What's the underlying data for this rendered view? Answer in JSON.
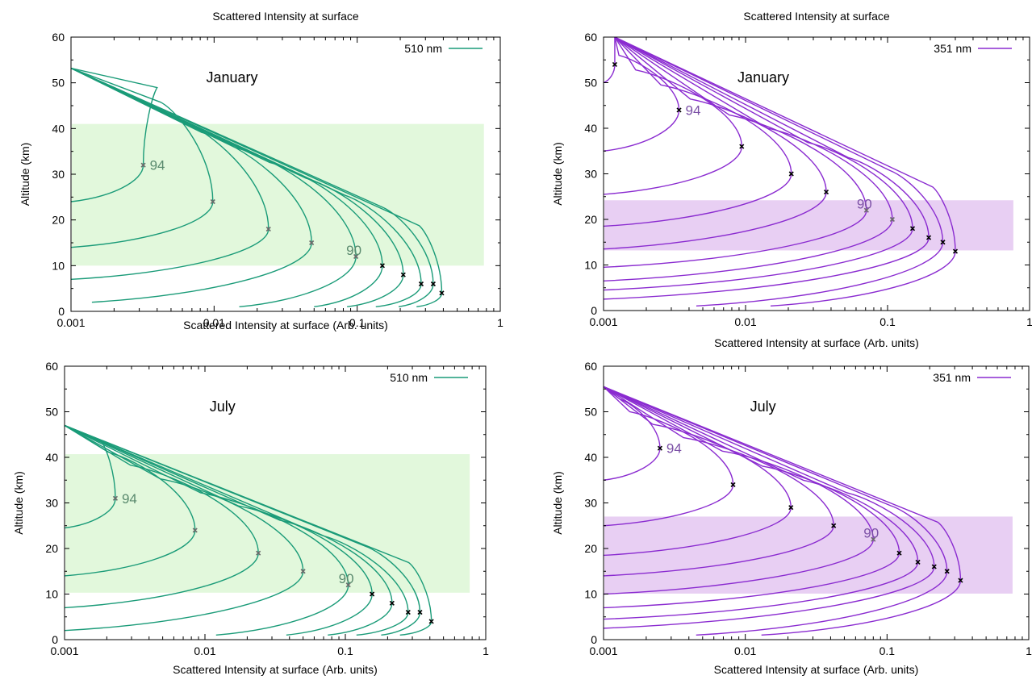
{
  "chart_data": [
    {
      "type": "line",
      "title": "Scattered Intensity at surface",
      "xlabel": "Scattered Intensity at surface (Arb. units)",
      "ylabel": "Altitude (km)",
      "xscale": "log",
      "xlim": [
        0.001,
        1
      ],
      "ylim": [
        0,
        60
      ],
      "xticks": [
        "0.001",
        "0.01",
        "0.1",
        "1"
      ],
      "yticks": [
        "0",
        "10",
        "20",
        "30",
        "40",
        "50",
        "60"
      ],
      "grid": false,
      "legend": "top-right",
      "legend_label": "510 nm",
      "color": "#1a9b78",
      "band_color": "#e2f8dc",
      "band": [
        10,
        41
      ],
      "annotation": "January",
      "top": 53.2,
      "topx": 0.001,
      "bx": 0.004,
      "label_upper": "94",
      "label_lower": "90",
      "upper_label_idx": 0,
      "lower_label_idx": 4,
      "peaks": [
        {
          "x": 0.0032,
          "y": 32,
          "marker": "gray"
        },
        {
          "x": 0.0098,
          "y": 24,
          "marker": "gray"
        },
        {
          "x": 0.024,
          "y": 18,
          "marker": "gray"
        },
        {
          "x": 0.048,
          "y": 15,
          "marker": "gray"
        },
        {
          "x": 0.098,
          "y": 12,
          "marker": "gray"
        },
        {
          "x": 0.15,
          "y": 10,
          "marker": "black"
        },
        {
          "x": 0.21,
          "y": 8,
          "marker": "black"
        },
        {
          "x": 0.28,
          "y": 6,
          "marker": "black"
        },
        {
          "x": 0.34,
          "y": 6,
          "marker": "black"
        },
        {
          "x": 0.39,
          "y": 4,
          "marker": "black"
        }
      ],
      "starts": [
        {
          "x": 0.001,
          "y": 24
        },
        {
          "x": 0.001,
          "y": 14
        },
        {
          "x": 0.001,
          "y": 7
        },
        {
          "x": 0.0014,
          "y": 2
        },
        {
          "x": 0.015,
          "y": 1
        },
        {
          "x": 0.05,
          "y": 1
        },
        {
          "x": 0.085,
          "y": 1
        },
        {
          "x": 0.135,
          "y": 1
        },
        {
          "x": 0.195,
          "y": 1
        },
        {
          "x": 0.26,
          "y": 1
        }
      ]
    },
    {
      "type": "line",
      "title": "Scattered Intensity at surface",
      "xlabel": "Scattered Intensity at surface (Arb. units)",
      "ylabel": "Altitude (km)",
      "xscale": "log",
      "xlim": [
        0.001,
        1
      ],
      "ylim": [
        0,
        60
      ],
      "xticks": [
        "0.001",
        "0.01",
        "0.1",
        "1"
      ],
      "yticks": [
        "0",
        "10",
        "20",
        "30",
        "40",
        "50",
        "60"
      ],
      "grid": false,
      "legend": "top-right",
      "legend_label": "351 nm",
      "color": "#8a2bd0",
      "band_color": "#e8cff3",
      "band": [
        13.2,
        24.2
      ],
      "annotation": "January",
      "top": 60,
      "topx": 0.0012,
      "bx": 0.0012,
      "label_upper": "94",
      "label_lower": "90",
      "upper_label_idx": 1,
      "lower_label_idx": 5,
      "peaks": [
        {
          "x": 0.0012,
          "y": 54,
          "marker": "black"
        },
        {
          "x": 0.0034,
          "y": 44,
          "marker": "black"
        },
        {
          "x": 0.0094,
          "y": 36,
          "marker": "black"
        },
        {
          "x": 0.021,
          "y": 30,
          "marker": "black"
        },
        {
          "x": 0.037,
          "y": 26,
          "marker": "black"
        },
        {
          "x": 0.071,
          "y": 22,
          "marker": "gray"
        },
        {
          "x": 0.108,
          "y": 20,
          "marker": "gray"
        },
        {
          "x": 0.15,
          "y": 18,
          "marker": "black"
        },
        {
          "x": 0.195,
          "y": 16,
          "marker": "black"
        },
        {
          "x": 0.245,
          "y": 15,
          "marker": "black"
        },
        {
          "x": 0.3,
          "y": 13,
          "marker": "black"
        }
      ],
      "starts": [
        {
          "x": 0.001,
          "y": 50
        },
        {
          "x": 0.001,
          "y": 35
        },
        {
          "x": 0.001,
          "y": 25.5
        },
        {
          "x": 0.001,
          "y": 18.5
        },
        {
          "x": 0.001,
          "y": 13.5
        },
        {
          "x": 0.001,
          "y": 9.5
        },
        {
          "x": 0.001,
          "y": 6.5
        },
        {
          "x": 0.001,
          "y": 4.5
        },
        {
          "x": 0.001,
          "y": 2.5
        },
        {
          "x": 0.0045,
          "y": 1
        },
        {
          "x": 0.015,
          "y": 1
        }
      ]
    },
    {
      "type": "line",
      "title": "",
      "xlabel": "Scattered Intensity at surface (Arb. units)",
      "ylabel": "Altitude (km)",
      "xscale": "log",
      "xlim": [
        0.001,
        1
      ],
      "ylim": [
        0,
        60
      ],
      "xticks": [
        "0.001",
        "0.01",
        "0.1",
        "1"
      ],
      "yticks": [
        "0",
        "10",
        "20",
        "30",
        "40",
        "50",
        "60"
      ],
      "grid": false,
      "legend": "top-right",
      "legend_label": "510 nm",
      "color": "#1a9b78",
      "band_color": "#e2f8dc",
      "band": [
        10.3,
        40.7
      ],
      "annotation": "July",
      "top": 47,
      "topx": 0.001,
      "bx": 0.0018,
      "label_upper": "94",
      "label_lower": "90",
      "upper_label_idx": 0,
      "lower_label_idx": 4,
      "peaks": [
        {
          "x": 0.0023,
          "y": 31,
          "marker": "gray"
        },
        {
          "x": 0.0085,
          "y": 24,
          "marker": "gray"
        },
        {
          "x": 0.024,
          "y": 19,
          "marker": "gray"
        },
        {
          "x": 0.05,
          "y": 15,
          "marker": "gray"
        },
        {
          "x": 0.105,
          "y": 12,
          "marker": "gray"
        },
        {
          "x": 0.155,
          "y": 10,
          "marker": "black"
        },
        {
          "x": 0.215,
          "y": 8,
          "marker": "black"
        },
        {
          "x": 0.28,
          "y": 6,
          "marker": "black"
        },
        {
          "x": 0.34,
          "y": 6,
          "marker": "black"
        },
        {
          "x": 0.41,
          "y": 4,
          "marker": "black"
        }
      ],
      "starts": [
        {
          "x": 0.001,
          "y": 24.5
        },
        {
          "x": 0.001,
          "y": 14
        },
        {
          "x": 0.001,
          "y": 7
        },
        {
          "x": 0.001,
          "y": 2
        },
        {
          "x": 0.012,
          "y": 1
        },
        {
          "x": 0.038,
          "y": 1
        },
        {
          "x": 0.075,
          "y": 1
        },
        {
          "x": 0.12,
          "y": 1
        },
        {
          "x": 0.18,
          "y": 1
        },
        {
          "x": 0.245,
          "y": 1
        }
      ]
    },
    {
      "type": "line",
      "title": "",
      "xlabel": "Scattered Intensity at surface (Arb. units)",
      "ylabel": "Altitude (km)",
      "xscale": "log",
      "xlim": [
        0.001,
        1
      ],
      "ylim": [
        0,
        60
      ],
      "xticks": [
        "0.001",
        "0.01",
        "0.1",
        "1"
      ],
      "yticks": [
        "0",
        "10",
        "20",
        "30",
        "40",
        "50",
        "60"
      ],
      "grid": false,
      "legend": "top-right",
      "legend_label": "351 nm",
      "color": "#8a2bd0",
      "band_color": "#e8cff3",
      "band": [
        10.1,
        27
      ],
      "annotation": "July",
      "top": 55.5,
      "topx": 0.001,
      "bx": 0.0013,
      "label_upper": "94",
      "label_lower": "90",
      "upper_label_idx": 0,
      "lower_label_idx": 4,
      "peaks": [
        {
          "x": 0.0025,
          "y": 42,
          "marker": "black"
        },
        {
          "x": 0.0082,
          "y": 34,
          "marker": "black"
        },
        {
          "x": 0.021,
          "y": 29,
          "marker": "black"
        },
        {
          "x": 0.042,
          "y": 25,
          "marker": "black"
        },
        {
          "x": 0.08,
          "y": 22,
          "marker": "gray"
        },
        {
          "x": 0.122,
          "y": 19,
          "marker": "black"
        },
        {
          "x": 0.165,
          "y": 17,
          "marker": "black"
        },
        {
          "x": 0.215,
          "y": 16,
          "marker": "black"
        },
        {
          "x": 0.265,
          "y": 15,
          "marker": "black"
        },
        {
          "x": 0.33,
          "y": 13,
          "marker": "black"
        }
      ],
      "starts": [
        {
          "x": 0.001,
          "y": 35
        },
        {
          "x": 0.001,
          "y": 25
        },
        {
          "x": 0.001,
          "y": 18.5
        },
        {
          "x": 0.001,
          "y": 14
        },
        {
          "x": 0.001,
          "y": 10
        },
        {
          "x": 0.001,
          "y": 7
        },
        {
          "x": 0.001,
          "y": 4.5
        },
        {
          "x": 0.001,
          "y": 2.5
        },
        {
          "x": 0.0045,
          "y": 1
        },
        {
          "x": 0.013,
          "y": 1
        }
      ]
    }
  ]
}
